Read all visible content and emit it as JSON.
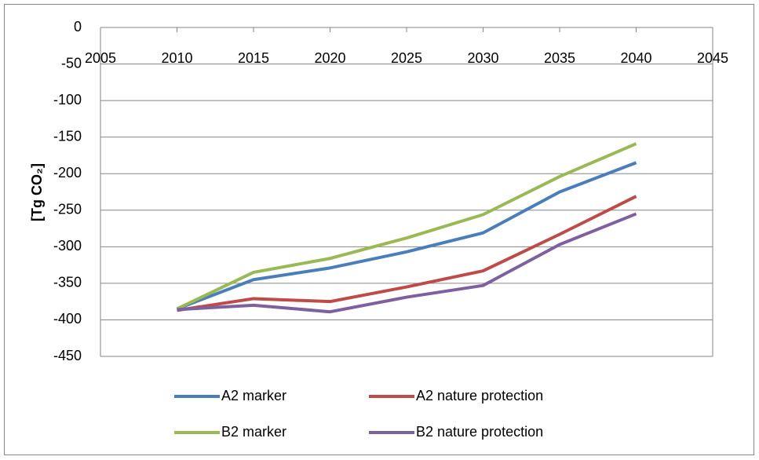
{
  "chart_data": {
    "type": "line",
    "ylabel": "[Tg CO₂]",
    "x": [
      2010,
      2015,
      2020,
      2025,
      2030,
      2035,
      2040
    ],
    "series": [
      {
        "name": "A2 marker",
        "color": "#4a7ebb",
        "values": [
          -385,
          -345,
          -329,
          -307,
          -281,
          -225,
          -185
        ]
      },
      {
        "name": "A2 nature protection",
        "color": "#be4b48",
        "values": [
          -387,
          -371,
          -375,
          -355,
          -333,
          -283,
          -231
        ]
      },
      {
        "name": "B2 marker",
        "color": "#98b954",
        "values": [
          -385,
          -335,
          -316,
          -288,
          -256,
          -204,
          -159
        ]
      },
      {
        "name": "B2 nature protection",
        "color": "#7d60a0",
        "values": [
          -386,
          -380,
          -389,
          -369,
          -353,
          -297,
          -255
        ]
      }
    ],
    "xlim": [
      2005,
      2045
    ],
    "xticks": [
      2005,
      2010,
      2015,
      2020,
      2025,
      2030,
      2035,
      2040,
      2045
    ],
    "ylim": [
      -450,
      0
    ],
    "yticks": [
      0,
      -50,
      -100,
      -150,
      -200,
      -250,
      -300,
      -350,
      -400,
      -450
    ],
    "grid": true
  }
}
